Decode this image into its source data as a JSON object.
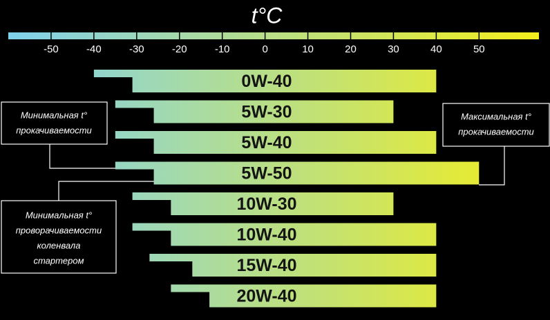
{
  "chart_data": {
    "type": "range_bar",
    "title": "t°C",
    "xlim": [
      -60,
      64
    ],
    "xticks": [
      -50,
      -40,
      -30,
      -20,
      -10,
      0,
      10,
      20,
      30,
      40,
      50
    ],
    "zero_tick_color": "#e0262b",
    "cold_color": "#7fd0ee",
    "hot_color": "#f3ee1c",
    "categories": [
      "0W-40",
      "5W-30",
      "5W-40",
      "5W-50",
      "10W-30",
      "10W-40",
      "15W-40",
      "20W-40"
    ],
    "pumping_min": [
      -40,
      -35,
      -35,
      -35,
      -31,
      -31,
      -27,
      -22
    ],
    "cranking_min": [
      -31,
      -26,
      -26,
      -26,
      -22,
      -22,
      -17,
      -13
    ],
    "max": [
      40,
      30,
      40,
      50,
      30,
      40,
      40,
      40
    ],
    "annotations": {
      "pumping_min": [
        "Минимальная t°",
        "прокачиваемости"
      ],
      "max": [
        "Максимальная t°",
        "прокачиваемости"
      ],
      "cranking_min": [
        "Минимальная t°",
        "проворачиваемости",
        "коленвала",
        "стартером"
      ]
    }
  }
}
